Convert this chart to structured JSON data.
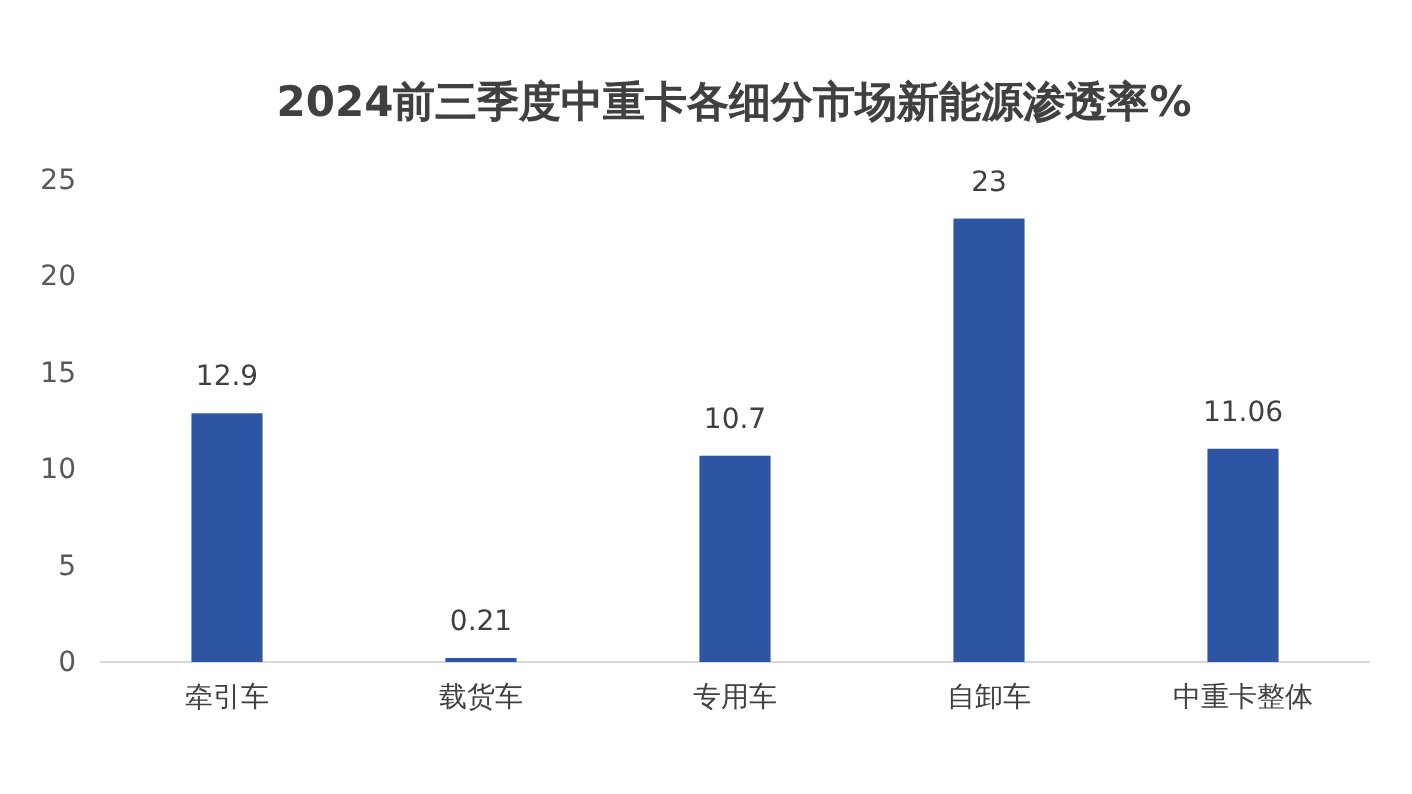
{
  "chart_data": {
    "type": "bar",
    "title": "2024前三季度中重卡各细分市场新能源渗透率%",
    "categories": [
      "牵引车",
      "载货车",
      "专用车",
      "自卸车",
      "中重卡整体"
    ],
    "values": [
      12.9,
      0.21,
      10.7,
      23,
      11.06
    ],
    "color": "#2e54a4",
    "ylim": [
      0,
      25
    ],
    "yticks": [
      0,
      5,
      10,
      15,
      20,
      25
    ],
    "grid": false,
    "data_labels": true
  }
}
